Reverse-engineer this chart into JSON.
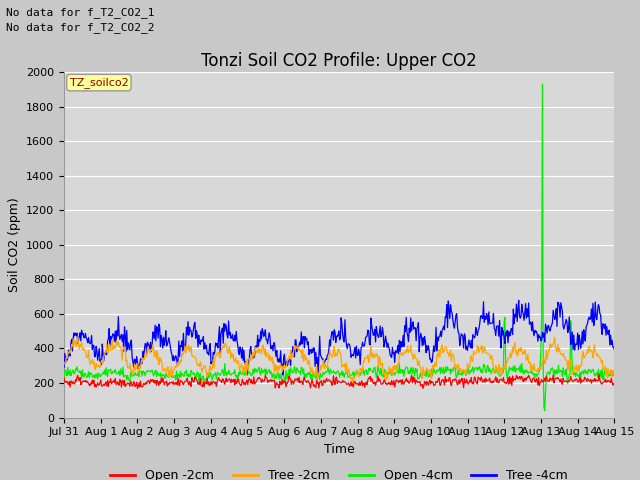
{
  "title": "Tonzi Soil CO2 Profile: Upper CO2",
  "ylabel": "Soil CO2 (ppm)",
  "xlabel": "Time",
  "annotations": [
    "No data for f_T2_CO2_1",
    "No data for f_T2_CO2_2"
  ],
  "legend_label": "TZ_soilco2",
  "ylim": [
    0,
    2000
  ],
  "yticks": [
    0,
    200,
    400,
    600,
    800,
    1000,
    1200,
    1400,
    1600,
    1800,
    2000
  ],
  "fig_bg_color": "#c8c8c8",
  "plot_bg_color": "#d8d8d8",
  "grid_color": "#ffffff",
  "line_colors": {
    "open2": "#ff0000",
    "tree2": "#ffa500",
    "open4": "#00ee00",
    "tree4": "#0000ff"
  },
  "legend_labels": [
    "Open -2cm",
    "Tree -2cm",
    "Open -4cm",
    "Tree -4cm"
  ],
  "n_points": 720,
  "title_fontsize": 12,
  "annot_fontsize": 8,
  "tick_fontsize": 8,
  "label_fontsize": 9
}
